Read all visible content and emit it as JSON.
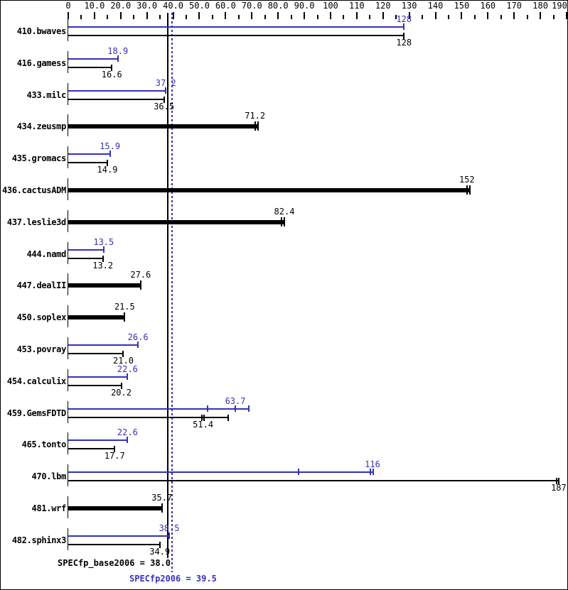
{
  "chart_data": {
    "type": "bar",
    "orientation": "horizontal",
    "title": "",
    "xlabel": "",
    "ylabel": "",
    "xlim": [
      0,
      190
    ],
    "x_major_tick_step": 10,
    "x_minor_tick_step": 5,
    "grid": false,
    "axis_tick_labels": [
      "0",
      "10.0",
      "20.0",
      "30.0",
      "40.0",
      "50.0",
      "60.0",
      "70.0",
      "80.0",
      "90.0",
      "100",
      "110",
      "120",
      "130",
      "140",
      "150",
      "160",
      "170",
      "180",
      "190"
    ],
    "colors": {
      "peak": "#3232bb",
      "base": "#000000"
    },
    "reference_lines": [
      {
        "name": "SPECfp_base2006",
        "value": 38.0,
        "color": "#000000",
        "style": "solid"
      },
      {
        "name": "SPECfp2006",
        "value": 39.5,
        "color": "#3232bb",
        "style": "dotted"
      }
    ],
    "benchmarks": [
      {
        "name": "410.bwaves",
        "display": "double",
        "peak": {
          "value": 128,
          "label": "128",
          "ticks": [
            128
          ]
        },
        "base": {
          "value": 128,
          "label": "128",
          "ticks": [
            128
          ]
        }
      },
      {
        "name": "416.gamess",
        "display": "double",
        "peak": {
          "value": 18.9,
          "label": "18.9",
          "ticks": [
            18.9
          ]
        },
        "base": {
          "value": 16.6,
          "label": "16.6",
          "ticks": [
            16.6
          ]
        }
      },
      {
        "name": "433.milc",
        "display": "double",
        "peak": {
          "value": 37.2,
          "label": "37.2",
          "ticks": [
            37.2
          ]
        },
        "base": {
          "value": 36.5,
          "label": "36.5",
          "ticks": [
            36.5
          ]
        }
      },
      {
        "name": "434.zeusmp",
        "display": "single",
        "base": {
          "value": 71.2,
          "label": "71.2",
          "ticks": [
            71.2,
            72.4
          ]
        }
      },
      {
        "name": "435.gromacs",
        "display": "double",
        "peak": {
          "value": 15.9,
          "label": "15.9",
          "ticks": [
            15.9
          ]
        },
        "base": {
          "value": 14.9,
          "label": "14.9",
          "ticks": [
            14.9
          ]
        }
      },
      {
        "name": "436.cactusADM",
        "display": "single",
        "base": {
          "value": 152,
          "label": "152",
          "ticks": [
            152,
            153.2
          ]
        }
      },
      {
        "name": "437.leslie3d",
        "display": "single",
        "base": {
          "value": 82.4,
          "label": "82.4",
          "ticks": [
            81.2,
            82.4
          ]
        }
      },
      {
        "name": "444.namd",
        "display": "double",
        "peak": {
          "value": 13.5,
          "label": "13.5",
          "ticks": [
            13.5
          ]
        },
        "base": {
          "value": 13.2,
          "label": "13.2",
          "ticks": [
            13.2
          ]
        }
      },
      {
        "name": "447.dealII",
        "display": "single",
        "base": {
          "value": 27.6,
          "label": "27.6",
          "ticks": [
            27.6
          ]
        }
      },
      {
        "name": "450.soplex",
        "display": "single",
        "base": {
          "value": 21.5,
          "label": "21.5",
          "ticks": [
            21.5
          ]
        }
      },
      {
        "name": "453.povray",
        "display": "double",
        "peak": {
          "value": 26.6,
          "label": "26.6",
          "ticks": [
            26.6
          ]
        },
        "base": {
          "value": 21.0,
          "label": "21.0",
          "ticks": [
            21.0
          ]
        }
      },
      {
        "name": "454.calculix",
        "display": "double",
        "peak": {
          "value": 22.6,
          "label": "22.6",
          "ticks": [
            22.6
          ]
        },
        "base": {
          "value": 20.2,
          "label": "20.2",
          "ticks": [
            20.2
          ]
        }
      },
      {
        "name": "459.GemsFDTD",
        "display": "double",
        "peak": {
          "value": 63.7,
          "label": "63.7",
          "ticks": [
            53.1,
            63.7,
            68.9
          ]
        },
        "base": {
          "value": 51.4,
          "label": "51.4",
          "ticks": [
            50.9,
            51.7,
            60.9
          ]
        }
      },
      {
        "name": "465.tonto",
        "display": "double",
        "peak": {
          "value": 22.6,
          "label": "22.6",
          "ticks": [
            22.6
          ]
        },
        "base": {
          "value": 17.7,
          "label": "17.7",
          "ticks": [
            17.7
          ]
        }
      },
      {
        "name": "470.lbm",
        "display": "double",
        "peak": {
          "value": 116,
          "label": "116",
          "ticks": [
            87.8,
            115.2,
            116.3
          ]
        },
        "base": {
          "value": 187,
          "label": "187",
          "ticks": [
            186.2,
            187
          ]
        }
      },
      {
        "name": "481.wrf",
        "display": "single",
        "base": {
          "value": 35.7,
          "label": "35.7",
          "ticks": [
            35.7
          ]
        }
      },
      {
        "name": "482.sphinx3",
        "display": "double",
        "peak": {
          "value": 38.5,
          "label": "38.5",
          "ticks": [
            38.5
          ]
        },
        "base": {
          "value": 34.9,
          "label": "34.9",
          "ticks": [
            34.9
          ]
        }
      }
    ],
    "summary": {
      "base": "SPECfp_base2006 = 38.0",
      "peak": "SPECfp2006 = 39.5"
    }
  }
}
